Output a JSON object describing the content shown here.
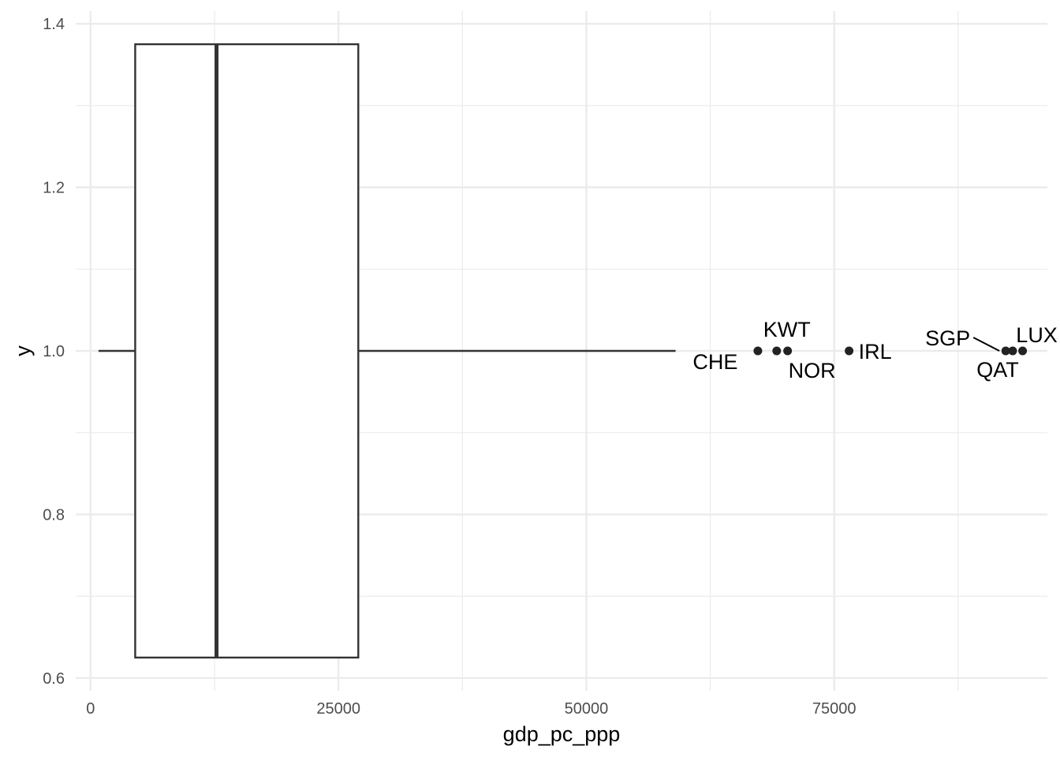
{
  "chart_data": {
    "type": "boxplot",
    "title": "",
    "xlabel": "gdp_pc_ppp",
    "ylabel": "y",
    "xlim": [
      -1500,
      96500
    ],
    "ylim": [
      0.6,
      1.4
    ],
    "x_ticks": [
      0,
      25000,
      50000,
      75000
    ],
    "x_tick_labels": [
      "0",
      "25000",
      "50000",
      "75000"
    ],
    "x_minor_ticks": [
      12500,
      37500,
      62500,
      87500
    ],
    "y_ticks": [
      0.6,
      0.8,
      1.0,
      1.2,
      1.4
    ],
    "y_tick_labels": [
      "0.6",
      "0.8",
      "1.0",
      "1.2",
      "1.4"
    ],
    "y_minor_ticks": [
      0.7,
      0.9,
      1.1,
      1.3
    ],
    "grid": true,
    "box": {
      "y": 1.0,
      "ymin": 0.625,
      "ymax": 1.375,
      "whisker_low": 800,
      "q1": 4500,
      "median": 12700,
      "q3": 27000,
      "whisker_high": 59000
    },
    "outliers": [
      {
        "label": "CHE",
        "x": 67300,
        "y": 1.0
      },
      {
        "label": "KWT",
        "x": 69200,
        "y": 1.0
      },
      {
        "label": "NOR",
        "x": 70300,
        "y": 1.0
      },
      {
        "label": "IRL",
        "x": 76500,
        "y": 1.0
      },
      {
        "label": "SGP",
        "x": 92300,
        "y": 1.0
      },
      {
        "label": "QAT",
        "x": 93000,
        "y": 1.0
      },
      {
        "label": "LUX",
        "x": 94000,
        "y": 1.0
      }
    ],
    "colors": {
      "box_outline": "#333333",
      "points": "#222222",
      "grid": "#ebebeb",
      "tick_text": "#4d4d4d"
    }
  }
}
